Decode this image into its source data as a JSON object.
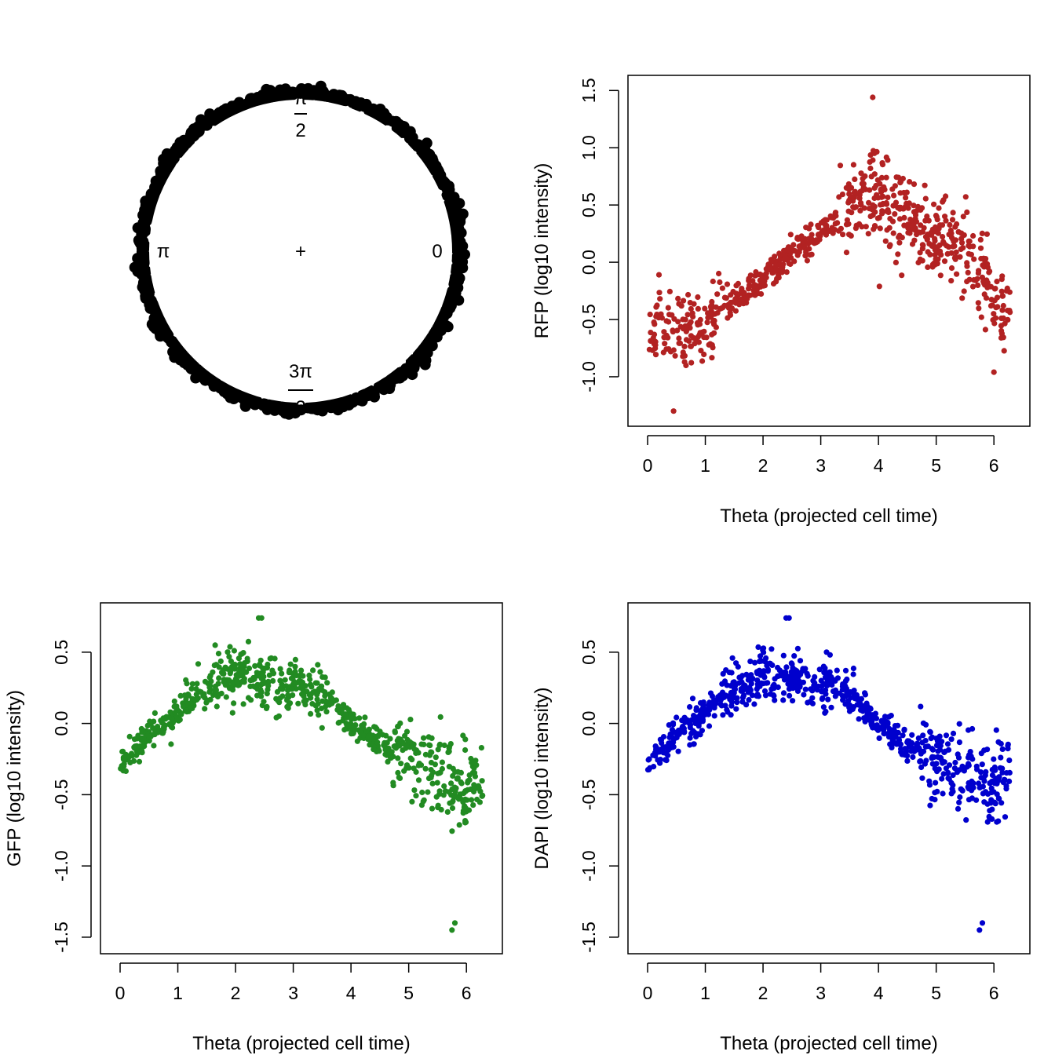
{
  "circle_plot": {
    "labels": {
      "angle_0": "0",
      "angle_half_pi_num": "π",
      "angle_half_pi_den": "2",
      "angle_pi": "π",
      "angle_three_half_pi_num": "3π",
      "angle_three_half_pi_den": "2",
      "center": "+"
    },
    "point_color": "#000000"
  },
  "chart_data": [
    {
      "id": "rfp",
      "type": "scatter",
      "title": "",
      "xlabel": "Theta (projected cell time)",
      "ylabel": "RFP (log10 intensity)",
      "xlim": [
        0,
        6.283
      ],
      "ylim": [
        -1.35,
        1.55
      ],
      "xticks": [
        0,
        1,
        2,
        3,
        4,
        5,
        6
      ],
      "yticks": [
        -1.0,
        -0.5,
        0.0,
        0.5,
        1.0,
        1.5
      ],
      "ytick_labels": [
        "-1.0",
        "-0.5",
        "0.0",
        "0.5",
        "1.0",
        "1.5"
      ],
      "color": "#b22222",
      "grid": false,
      "trend": {
        "x": [
          0.0,
          0.6,
          1.0,
          1.4,
          1.8,
          2.2,
          2.6,
          3.0,
          3.4,
          3.7,
          4.0,
          4.4,
          4.8,
          5.2,
          5.6,
          5.9,
          6.25
        ],
        "y": [
          -0.6,
          -0.6,
          -0.55,
          -0.38,
          -0.22,
          -0.05,
          0.12,
          0.25,
          0.45,
          0.58,
          0.55,
          0.42,
          0.28,
          0.18,
          0.0,
          -0.3,
          -0.4
        ]
      },
      "outliers": {
        "x": [
          3.9,
          0.45,
          6.0
        ],
        "y": [
          1.44,
          -1.3,
          -0.96
        ]
      }
    },
    {
      "id": "gfp",
      "type": "scatter",
      "title": "",
      "xlabel": "Theta (projected cell time)",
      "ylabel": "GFP (log10 intensity)",
      "xlim": [
        0,
        6.283
      ],
      "ylim": [
        -1.55,
        0.78
      ],
      "xticks": [
        0,
        1,
        2,
        3,
        4,
        5,
        6
      ],
      "yticks": [
        -1.5,
        -1.0,
        -0.5,
        0.0,
        0.5
      ],
      "ytick_labels": [
        "-1.5",
        "-1.0",
        "-0.5",
        "0.0",
        "0.5"
      ],
      "color": "#228b22",
      "grid": false,
      "trend": {
        "x": [
          0.0,
          0.4,
          0.8,
          1.2,
          1.6,
          2.0,
          2.4,
          2.8,
          3.2,
          3.6,
          4.0,
          4.4,
          4.8,
          5.2,
          5.6,
          5.9,
          6.25
        ],
        "y": [
          -0.3,
          -0.12,
          0.0,
          0.15,
          0.28,
          0.35,
          0.32,
          0.28,
          0.27,
          0.18,
          0.0,
          -0.12,
          -0.22,
          -0.28,
          -0.35,
          -0.48,
          -0.38
        ]
      },
      "outliers": {
        "x": [
          2.4,
          2.45,
          5.75,
          5.8
        ],
        "y": [
          0.74,
          0.74,
          -1.45,
          -1.4
        ]
      }
    },
    {
      "id": "dapi",
      "type": "scatter",
      "title": "",
      "xlabel": "Theta (projected cell time)",
      "ylabel": "DAPI (log10 intensity)",
      "xlim": [
        0,
        6.283
      ],
      "ylim": [
        -1.55,
        0.78
      ],
      "xticks": [
        0,
        1,
        2,
        3,
        4,
        5,
        6
      ],
      "yticks": [
        -1.5,
        -1.0,
        -0.5,
        0.0,
        0.5
      ],
      "ytick_labels": [
        "-1.5",
        "-1.0",
        "-0.5",
        "0.0",
        "0.5"
      ],
      "color": "#0000cd",
      "grid": false,
      "trend": {
        "x": [
          0.0,
          0.4,
          0.8,
          1.2,
          1.6,
          2.0,
          2.4,
          2.8,
          3.2,
          3.6,
          4.0,
          4.4,
          4.8,
          5.2,
          5.6,
          5.9,
          6.25
        ],
        "y": [
          -0.3,
          -0.12,
          0.0,
          0.15,
          0.28,
          0.35,
          0.32,
          0.28,
          0.27,
          0.18,
          0.0,
          -0.12,
          -0.22,
          -0.28,
          -0.35,
          -0.48,
          -0.38
        ]
      },
      "outliers": {
        "x": [
          2.4,
          2.45,
          5.75,
          5.8
        ],
        "y": [
          0.74,
          0.74,
          -1.45,
          -1.4
        ]
      }
    }
  ]
}
